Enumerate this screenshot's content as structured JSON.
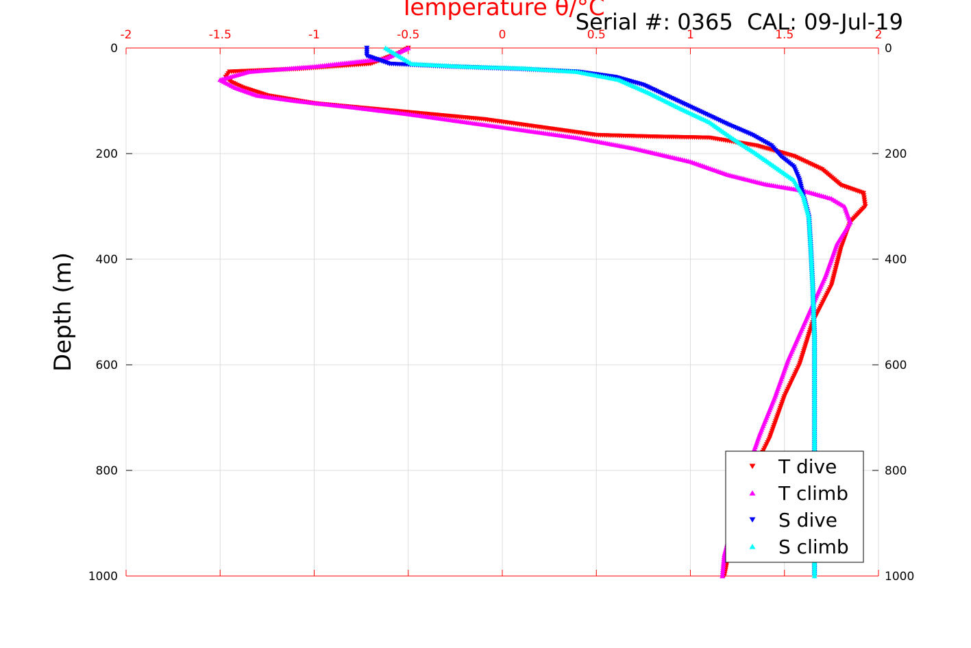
{
  "chart_data": {
    "type": "scatter",
    "title": "Temperature θ/°C",
    "title_color": "#ff0000",
    "annotation": "Serial #: 0365  CAL: 09-Jul-19",
    "xlabel": "Temperature θ/°C",
    "ylabel": "Depth (m)",
    "xlim": [
      -2,
      2
    ],
    "ylim": [
      1000,
      0
    ],
    "x_reversed": false,
    "y_reversed": true,
    "grid": true,
    "x_ticks": [
      "-2",
      "-1.5",
      "-1",
      "-0.5",
      "0",
      "0.5",
      "1",
      "1.5",
      "2"
    ],
    "y_ticks": [
      "0",
      "200",
      "400",
      "600",
      "800",
      "1000"
    ],
    "legend_position": "bottom-right",
    "legend": [
      "T dive",
      "T climb",
      "S dive",
      "S climb"
    ],
    "series": [
      {
        "name": "T dive",
        "color": "#ff0000",
        "marker": "triangle-down",
        "points": [
          [
            -0.5,
            0
          ],
          [
            -0.55,
            10
          ],
          [
            -0.7,
            30
          ],
          [
            -1.1,
            40
          ],
          [
            -1.45,
            45
          ],
          [
            -1.47,
            55
          ],
          [
            -1.44,
            65
          ],
          [
            -1.38,
            75
          ],
          [
            -1.25,
            90
          ],
          [
            -1.0,
            105
          ],
          [
            -0.7,
            115
          ],
          [
            -0.4,
            125
          ],
          [
            -0.1,
            135
          ],
          [
            0.2,
            150
          ],
          [
            0.5,
            165
          ],
          [
            0.8,
            168
          ],
          [
            1.1,
            170
          ],
          [
            1.35,
            185
          ],
          [
            1.55,
            205
          ],
          [
            1.7,
            230
          ],
          [
            1.8,
            260
          ],
          [
            1.92,
            275
          ],
          [
            1.93,
            300
          ],
          [
            1.85,
            330
          ],
          [
            1.8,
            380
          ],
          [
            1.75,
            450
          ],
          [
            1.65,
            520
          ],
          [
            1.58,
            600
          ],
          [
            1.5,
            660
          ],
          [
            1.42,
            740
          ],
          [
            1.35,
            790
          ],
          [
            1.28,
            860
          ],
          [
            1.22,
            930
          ],
          [
            1.18,
            1000
          ]
        ]
      },
      {
        "name": "T climb",
        "color": "#ff00ff",
        "marker": "triangle-up",
        "points": [
          [
            -0.5,
            0
          ],
          [
            -0.62,
            20
          ],
          [
            -1.0,
            35
          ],
          [
            -1.35,
            45
          ],
          [
            -1.5,
            60
          ],
          [
            -1.42,
            75
          ],
          [
            -1.3,
            90
          ],
          [
            -1.1,
            100
          ],
          [
            -0.8,
            112
          ],
          [
            -0.5,
            125
          ],
          [
            -0.2,
            140
          ],
          [
            0.1,
            155
          ],
          [
            0.4,
            170
          ],
          [
            0.7,
            190
          ],
          [
            1.0,
            215
          ],
          [
            1.2,
            240
          ],
          [
            1.4,
            258
          ],
          [
            1.6,
            270
          ],
          [
            1.75,
            285
          ],
          [
            1.82,
            300
          ],
          [
            1.85,
            330
          ],
          [
            1.78,
            370
          ],
          [
            1.72,
            430
          ],
          [
            1.62,
            510
          ],
          [
            1.52,
            590
          ],
          [
            1.45,
            660
          ],
          [
            1.37,
            730
          ],
          [
            1.3,
            800
          ],
          [
            1.24,
            880
          ],
          [
            1.18,
            960
          ],
          [
            1.17,
            1000
          ]
        ]
      },
      {
        "name": "S dive",
        "color": "#0000ff",
        "marker": "triangle-down",
        "points": [
          [
            -0.72,
            0
          ],
          [
            -0.72,
            15
          ],
          [
            -0.6,
            30
          ],
          [
            -0.3,
            35
          ],
          [
            0.1,
            40
          ],
          [
            0.4,
            45
          ],
          [
            0.6,
            55
          ],
          [
            0.75,
            70
          ],
          [
            0.9,
            95
          ],
          [
            1.05,
            120
          ],
          [
            1.2,
            145
          ],
          [
            1.33,
            165
          ],
          [
            1.43,
            185
          ],
          [
            1.48,
            205
          ],
          [
            1.55,
            225
          ],
          [
            1.58,
            250
          ],
          [
            1.6,
            280
          ],
          [
            1.63,
            320
          ],
          [
            1.64,
            380
          ],
          [
            1.65,
            450
          ],
          [
            1.66,
            550
          ],
          [
            1.66,
            650
          ],
          [
            1.66,
            750
          ],
          [
            1.66,
            850
          ],
          [
            1.66,
            950
          ],
          [
            1.66,
            1000
          ]
        ]
      },
      {
        "name": "S climb",
        "color": "#00ffff",
        "marker": "triangle-up",
        "points": [
          [
            -0.62,
            0
          ],
          [
            -0.55,
            15
          ],
          [
            -0.48,
            30
          ],
          [
            -0.2,
            35
          ],
          [
            0.1,
            38
          ],
          [
            0.4,
            45
          ],
          [
            0.62,
            60
          ],
          [
            0.78,
            85
          ],
          [
            0.95,
            115
          ],
          [
            1.1,
            140
          ],
          [
            1.22,
            170
          ],
          [
            1.35,
            200
          ],
          [
            1.45,
            225
          ],
          [
            1.55,
            250
          ],
          [
            1.6,
            280
          ],
          [
            1.63,
            320
          ],
          [
            1.64,
            380
          ],
          [
            1.65,
            450
          ],
          [
            1.66,
            550
          ],
          [
            1.66,
            650
          ],
          [
            1.66,
            750
          ],
          [
            1.66,
            850
          ],
          [
            1.66,
            950
          ],
          [
            1.66,
            1000
          ]
        ]
      }
    ]
  }
}
